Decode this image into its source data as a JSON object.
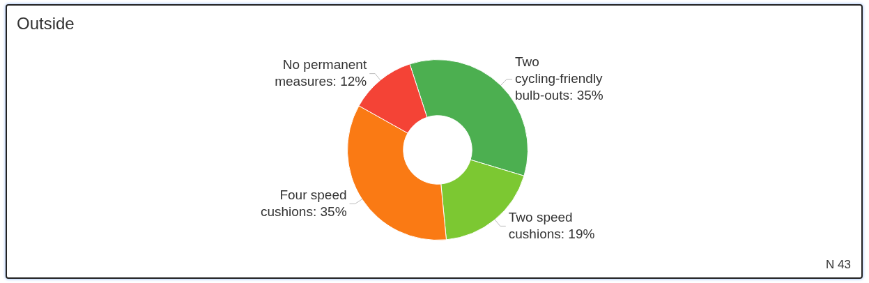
{
  "chart_data": {
    "type": "donut",
    "title": "Outside",
    "categories": [
      "Two cycling-friendly bulb-outs",
      "Two speed cushions",
      "Four speed cushions",
      "No permanent measures"
    ],
    "values": [
      35,
      19,
      35,
      12
    ],
    "value_labels": [
      "35%",
      "19%",
      "35%",
      "12%"
    ],
    "colors": [
      "#4caf50",
      "#7cc832",
      "#fa7a14",
      "#f44336"
    ],
    "legend": false,
    "annotations": [
      "N 43"
    ]
  }
}
